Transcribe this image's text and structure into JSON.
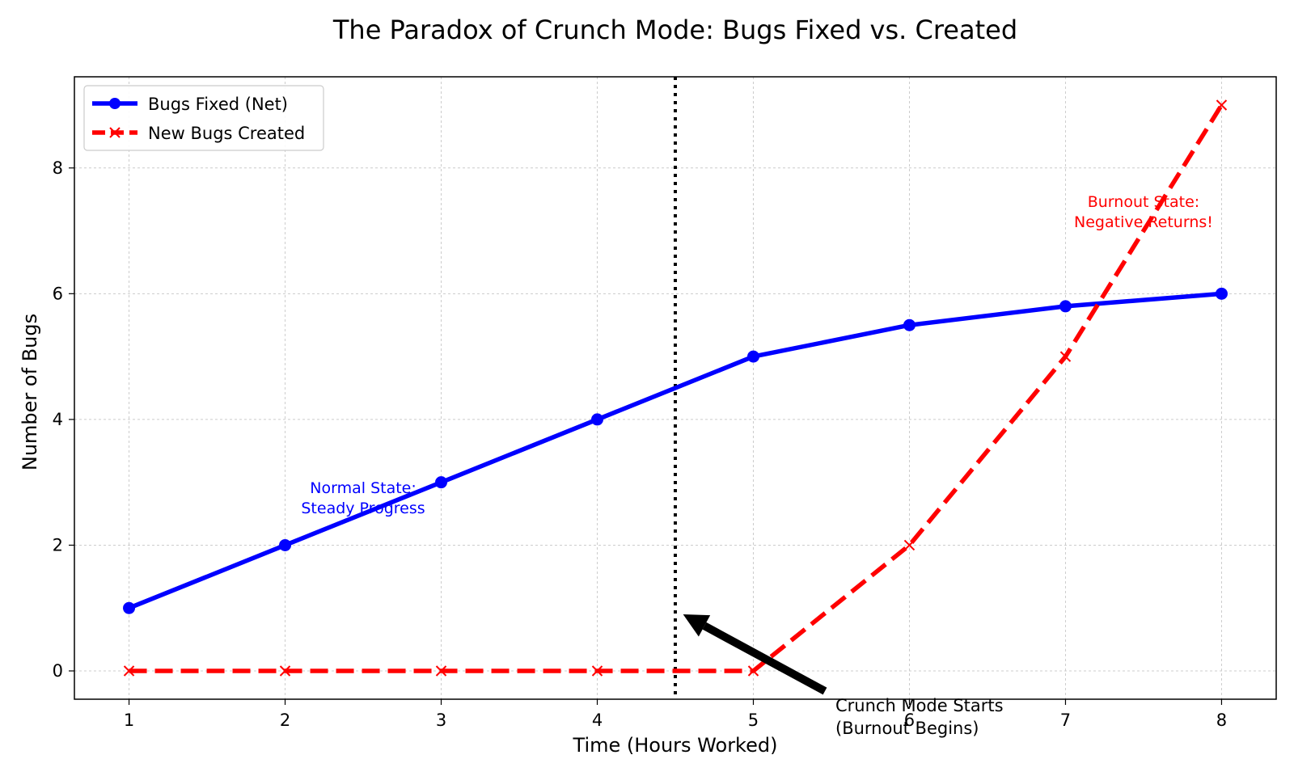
{
  "chart_data": {
    "type": "line",
    "title": "The Paradox of Crunch Mode: Bugs Fixed vs. Created",
    "xlabel": "Time (Hours Worked)",
    "ylabel": "Number of Bugs",
    "x": [
      1,
      2,
      3,
      4,
      5,
      6,
      7,
      8
    ],
    "xlim": [
      0.65,
      8.35
    ],
    "ylim": [
      -0.45,
      9.45
    ],
    "xticks": [
      1,
      2,
      3,
      4,
      5,
      6,
      7,
      8
    ],
    "yticks": [
      0,
      2,
      4,
      6,
      8
    ],
    "grid": true,
    "legend_position": "upper-left",
    "series": [
      {
        "name": "Bugs Fixed (Net)",
        "values": [
          1,
          2,
          3,
          4,
          5,
          5.5,
          5.8,
          6
        ],
        "color": "#0000ff",
        "style": "solid",
        "marker": "circle"
      },
      {
        "name": "New Bugs Created",
        "values": [
          0,
          0,
          0,
          0,
          0,
          2,
          5,
          9
        ],
        "color": "#ff0000",
        "style": "dashed",
        "marker": "x"
      }
    ],
    "vline": {
      "x": 4.5,
      "color": "#000000",
      "style": "dotted"
    },
    "annotations": [
      {
        "id": "normal",
        "lines": [
          "Normal State:",
          "Steady Progress"
        ],
        "x": 2.5,
        "y": 2.75,
        "color": "#0000ff"
      },
      {
        "id": "burnout",
        "lines": [
          "Burnout State:",
          "Negative Returns!"
        ],
        "x": 7.5,
        "y": 7.3,
        "color": "#ff0000"
      },
      {
        "id": "crunch",
        "lines": [
          "Crunch Mode Starts",
          "(Burnout Begins)"
        ],
        "x": 5.5,
        "y": -0.5,
        "arrow_to": [
          4.55,
          0.9
        ],
        "color": "#000000"
      }
    ]
  }
}
